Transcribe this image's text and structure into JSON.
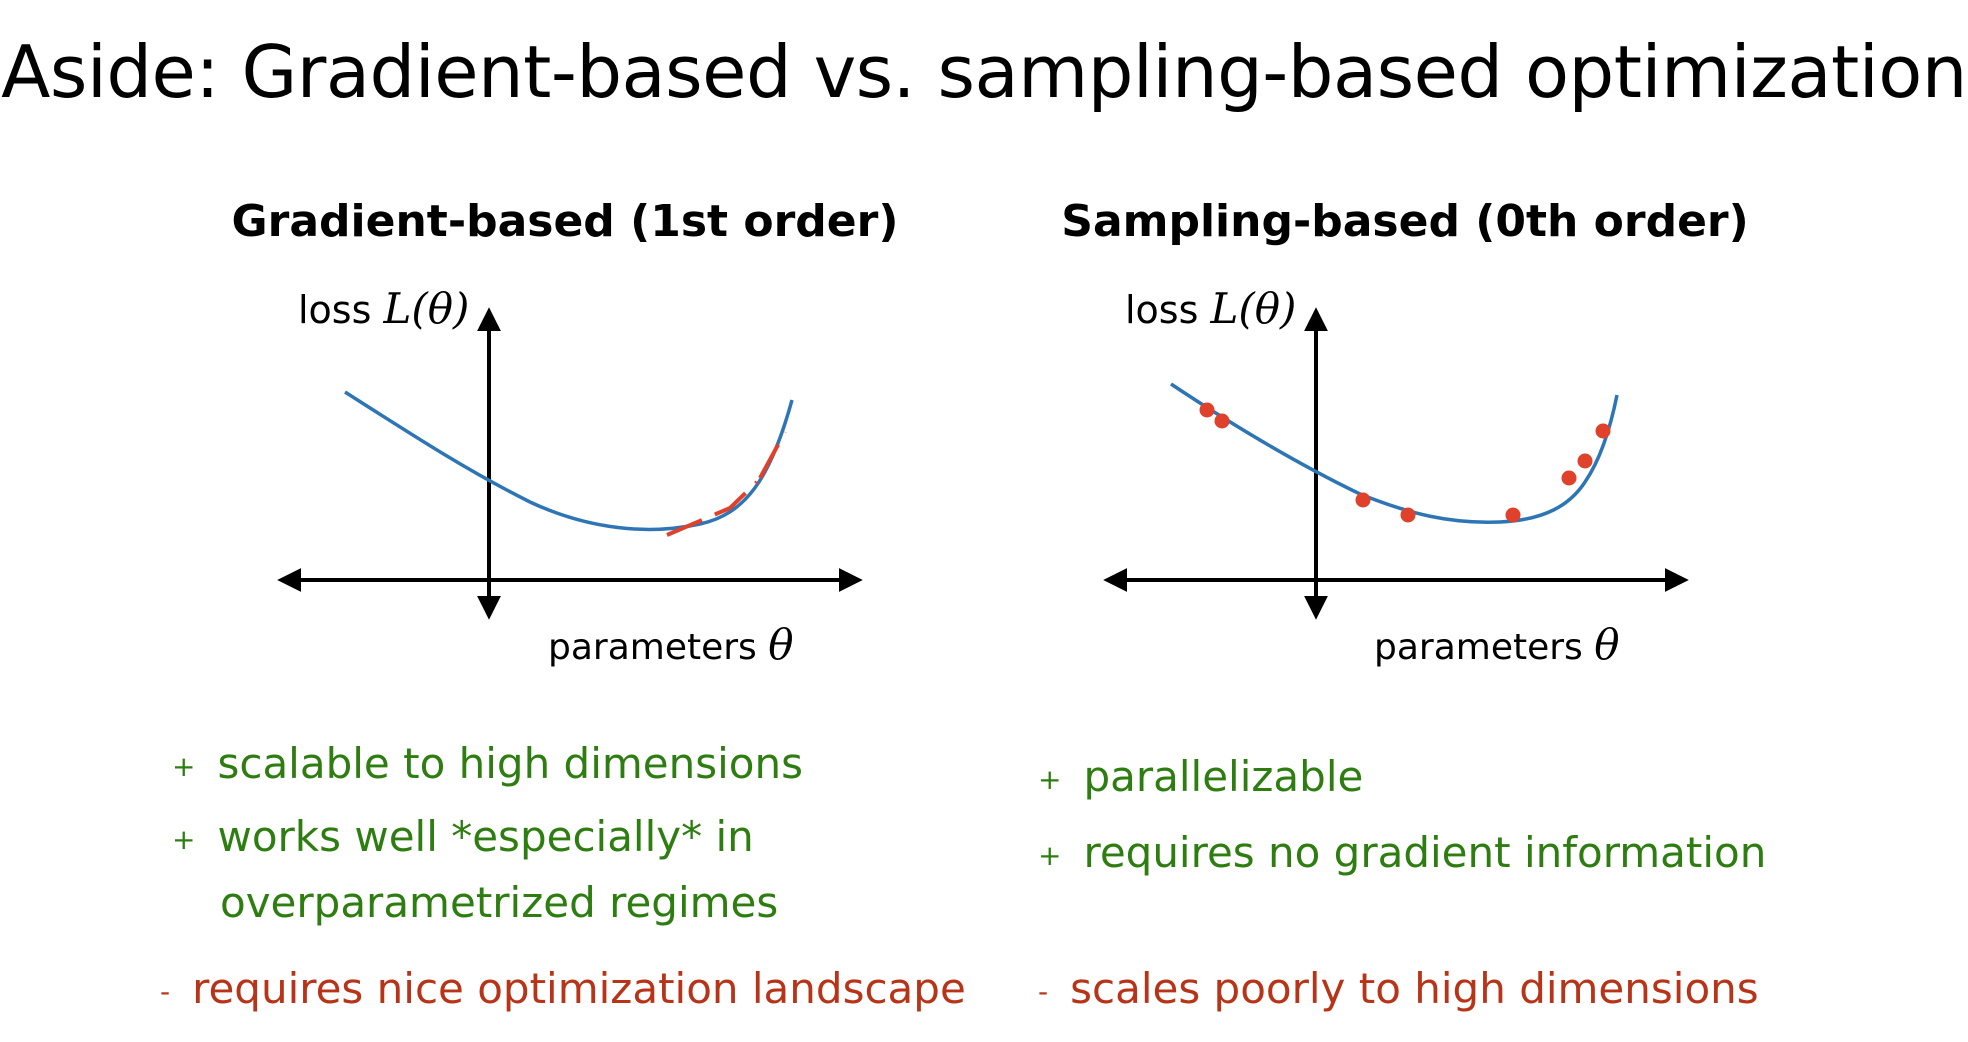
{
  "title": "Aside: Gradient-based vs. sampling-based optimization",
  "colors": {
    "curve": "#2e75b6",
    "highlight": "#e0412b",
    "pro": "#2e7d11",
    "con": "#b83418"
  },
  "left": {
    "title": "Gradient-based (1st order)",
    "ylabel_text": "loss ",
    "ylabel_math": "L(θ)",
    "xlabel_text": "parameters ",
    "xlabel_math": "θ",
    "pros": [
      {
        "marker": "+",
        "line1": "scalable to high dimensions"
      },
      {
        "marker": "+",
        "line1": "works well *especially* in",
        "line2": "overparametrized regimes"
      }
    ],
    "cons": [
      {
        "marker": "-",
        "line1": "requires nice optimization landscape"
      }
    ]
  },
  "right": {
    "title": "Sampling-based (0th order)",
    "ylabel_text": "loss ",
    "ylabel_math": "L(θ)",
    "xlabel_text": "parameters ",
    "xlabel_math": "θ",
    "pros": [
      {
        "marker": "+",
        "line1": "parallelizable"
      },
      {
        "marker": "+",
        "line1": "requires no gradient information"
      }
    ],
    "cons": [
      {
        "marker": "-",
        "line1": "scales poorly to high dimensions"
      }
    ]
  }
}
